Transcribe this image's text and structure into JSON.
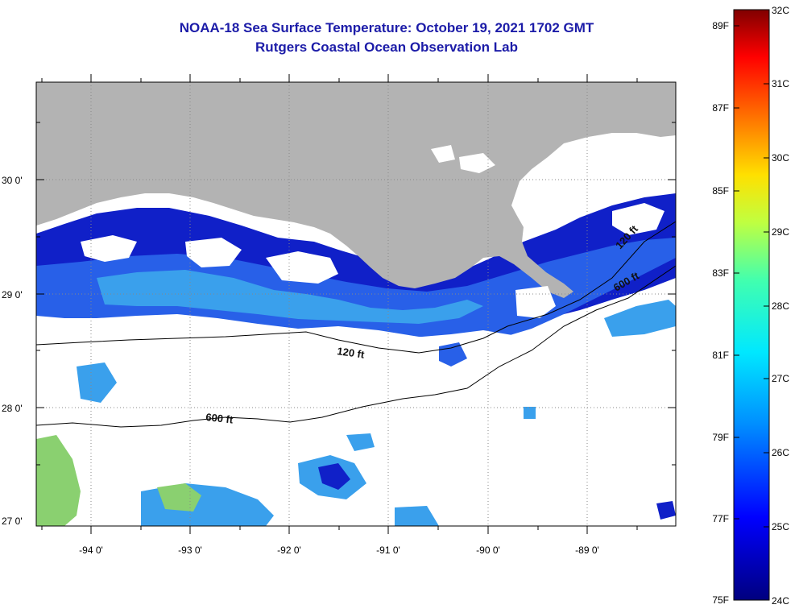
{
  "title": {
    "line1": "NOAA-18 Sea Surface Temperature:  October 19, 2021 1702 GMT",
    "line2": "Rutgers Coastal Ocean Observation Lab"
  },
  "map": {
    "lat_labels": [
      "30 0'",
      "29 0'",
      "28 0'",
      "27 0'"
    ],
    "lon_labels": [
      "-94 0'",
      "-93 0'",
      "-92 0'",
      "-91 0'",
      "-90 0'",
      "-89 0'"
    ],
    "contours": [
      {
        "label": "120 ft",
        "label2": "120 ft"
      },
      {
        "label": "600 ft",
        "label2": "600 ft"
      }
    ],
    "colors": {
      "land": "#b3b3b3",
      "cloud": "#ffffff",
      "water_dark": "#1020c8",
      "water_mid": "#2860e8",
      "water_light": "#3aa0ec",
      "water_warm": "#8ad070"
    }
  },
  "colorbar": {
    "f_labels": [
      "89F",
      "87F",
      "85F",
      "83F",
      "81F",
      "79F",
      "77F",
      "75F"
    ],
    "c_labels": [
      "32C",
      "31C",
      "30C",
      "29C",
      "28C",
      "27C",
      "26C",
      "25C",
      "24C"
    ]
  }
}
